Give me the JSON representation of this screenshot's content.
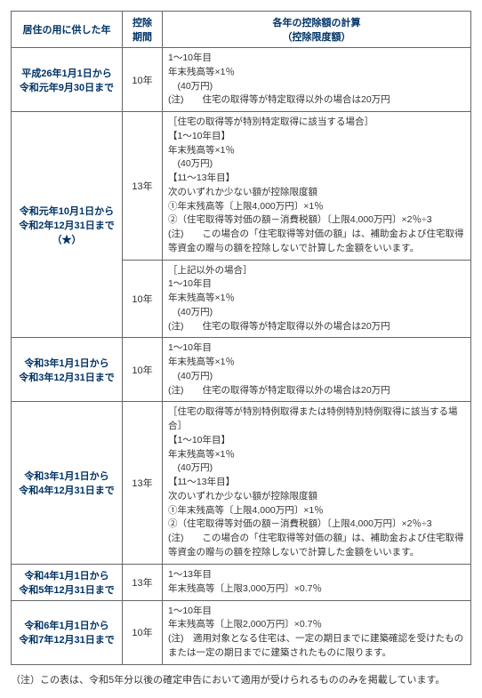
{
  "headers": {
    "period": "居住の用に供した年",
    "years": "控除期間",
    "calc": "各年の控除額の計算\n（控除限度額）"
  },
  "rows": [
    {
      "period": "平成26年1月1日から\n令和元年9月30日まで",
      "years": "10年",
      "desc": "1～10年目\n年末残高等×1％\n　(40万円)\n(注)　　住宅の取得等が特定取得以外の場合は20万円"
    },
    {
      "period": "令和元年10月1日から\n令和2年12月31日まで（★）",
      "rowspan": 2,
      "sub": [
        {
          "years": "13年",
          "desc": "［住宅の取得等が特別特定取得に該当する場合］\n【1～10年目】\n年末残高等×1％\n　(40万円)\n【11～13年目】\n次のいずれか少ない額が控除限度額\n①年末残高等〔上限4,000万円〕×1％\n②（住宅取得等対価の額－消費税額）〔上限4,000万円〕×2％÷3\n(注)　　この場合の「住宅取得等対価の額」は、補助金および住宅取得等資金の贈与の額を控除しないで計算した金額をいいます。"
        },
        {
          "years": "10年",
          "desc": "［上記以外の場合］\n1～10年目\n年末残高等×1％\n　(40万円)\n(注)　　住宅の取得等が特定取得以外の場合は20万円"
        }
      ]
    },
    {
      "period": "令和3年1月1日から\n令和3年12月31日まで",
      "years": "10年",
      "desc": "1～10年目\n年末残高等×1％\n　(40万円)\n(注)　　住宅の取得等が特定取得以外の場合は20万円"
    },
    {
      "period": "令和3年1月1日から\n令和4年12月31日まで",
      "years": "13年",
      "desc": "［住宅の取得等が特別特例取得または特例特別特例取得に該当する場合］\n【1～10年目】\n年末残高等×1％\n　(40万円)\n【11～13年目】\n次のいずれか少ない額が控除限度額\n①年末残高等〔上限4,000万円〕×1％\n②（住宅取得等対価の額－消費税額）〔上限4,000万円〕×2％÷3\n(注)　　この場合の「住宅取得等対価の額」は、補助金および住宅取得等資金の贈与の額を控除しないで計算した金額をいいます。"
    },
    {
      "period": "令和4年1月1日から\n令和5年12月31日まで",
      "years": "13年",
      "desc": "1～13年目\n年末残高等〔上限3,000万円〕×0.7％"
    },
    {
      "period": "令和6年1月1日から\n令和7年12月31日まで",
      "years": "10年",
      "desc": "1～10年目\n年末残高等〔上限2,000万円〕×0.7％\n(注)　適用対象となる住宅は、一定の期日までに建築確認を受けたものまたは一定の期日までに建築されたものに限ります。"
    }
  ],
  "footnote": "（注）この表は、令和5年分以後の確定申告において適用が受けられるもののみを掲載しています。"
}
